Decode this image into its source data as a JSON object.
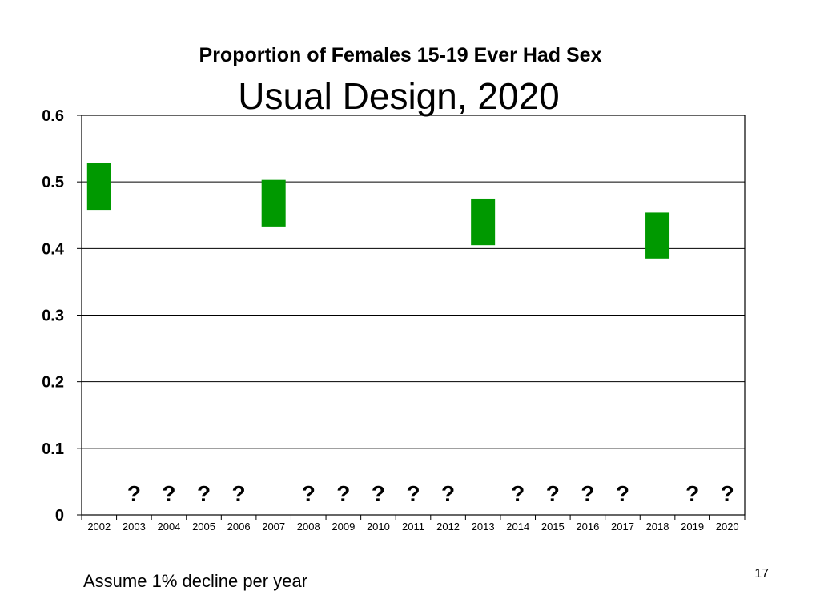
{
  "slide": {
    "footnote": "Assume 1% decline per year",
    "page_number": "17"
  },
  "colors": {
    "bar": "#009900",
    "grid": "#000000",
    "background": "#ffffff"
  },
  "chart_data": {
    "type": "bar",
    "title": "Proportion of Females 15-19 Ever Had Sex",
    "subtitle": "Usual Design, 2020",
    "xlabel": "",
    "ylabel": "",
    "ylim": [
      0,
      0.6
    ],
    "y_ticks": [
      "0",
      "0.1",
      "0.2",
      "0.3",
      "0.4",
      "0.5",
      "0.6"
    ],
    "grid": true,
    "categories": [
      "2002",
      "2003",
      "2004",
      "2005",
      "2006",
      "2007",
      "2008",
      "2009",
      "2010",
      "2011",
      "2012",
      "2013",
      "2014",
      "2015",
      "2016",
      "2017",
      "2018",
      "2019",
      "2020"
    ],
    "ranges": [
      {
        "category": "2002",
        "low": 0.458,
        "high": 0.528
      },
      {
        "category": "2007",
        "low": 0.433,
        "high": 0.503
      },
      {
        "category": "2013",
        "low": 0.405,
        "high": 0.475
      },
      {
        "category": "2018",
        "low": 0.385,
        "high": 0.454
      }
    ],
    "unknown_marker": "?",
    "unknown_years": [
      "2003",
      "2004",
      "2005",
      "2006",
      "2008",
      "2009",
      "2010",
      "2011",
      "2012",
      "2014",
      "2015",
      "2016",
      "2017",
      "2019",
      "2020"
    ]
  }
}
